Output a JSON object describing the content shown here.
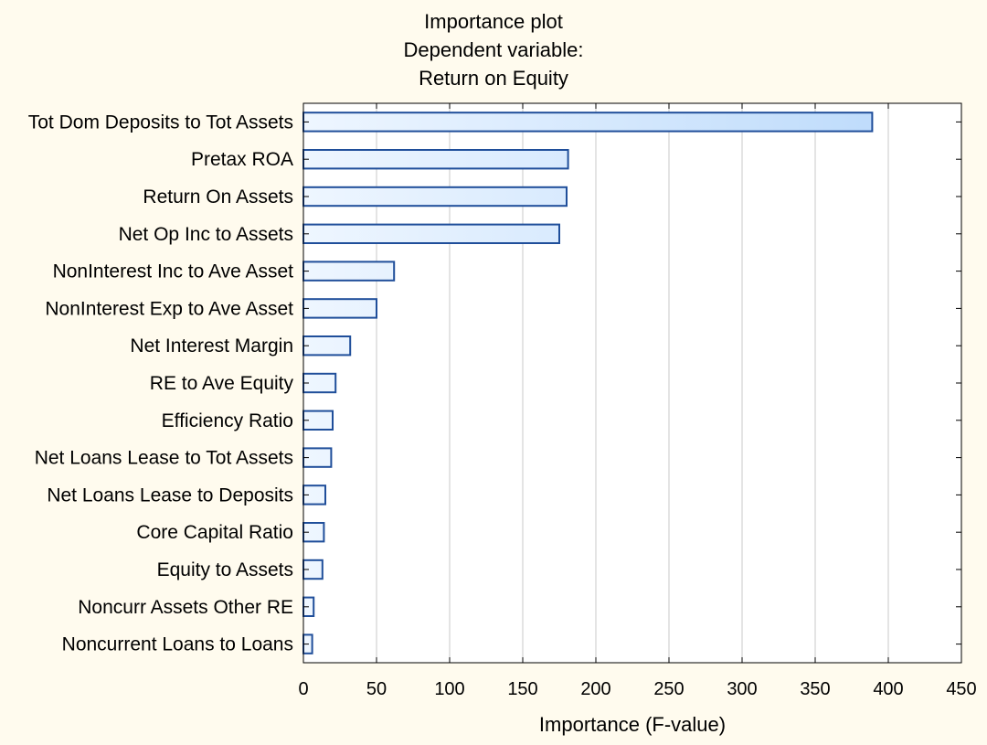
{
  "colors": {
    "background": "#fffbee",
    "plot_background": "#ffffff",
    "bar_fill_light": "#eef6ff",
    "bar_fill_dark": "#b8d8fb",
    "bar_stroke": "#1f4e9a",
    "grid": "#c8c8c8",
    "axis": "#000000"
  },
  "chart_data": {
    "type": "bar",
    "orientation": "horizontal",
    "title_lines": [
      "Importance plot",
      "Dependent variable:",
      "Return on Equity"
    ],
    "xlabel": "Importance (F-value)",
    "ylabel": "",
    "xlim": [
      0,
      450
    ],
    "xticks": [
      0,
      50,
      100,
      150,
      200,
      250,
      300,
      350,
      400,
      450
    ],
    "grid": "vertical",
    "legend": "none",
    "categories": [
      "Tot Dom Deposits to Tot Assets",
      "Pretax ROA",
      "Return On Assets",
      "Net Op Inc to Assets",
      "NonInterest Inc to Ave Asset",
      "NonInterest Exp to Ave Asset",
      "Net Interest Margin",
      "RE to Ave Equity",
      "Efficiency Ratio",
      "Net Loans Lease to Tot Assets",
      "Net Loans Lease to Deposits",
      "Core Capital Ratio",
      "Equity to Assets",
      "Noncurr Assets Other RE",
      "Noncurrent Loans to Loans"
    ],
    "values": [
      389,
      181,
      180,
      175,
      62,
      50,
      32,
      22,
      20,
      19,
      15,
      14,
      13,
      7,
      6
    ]
  }
}
